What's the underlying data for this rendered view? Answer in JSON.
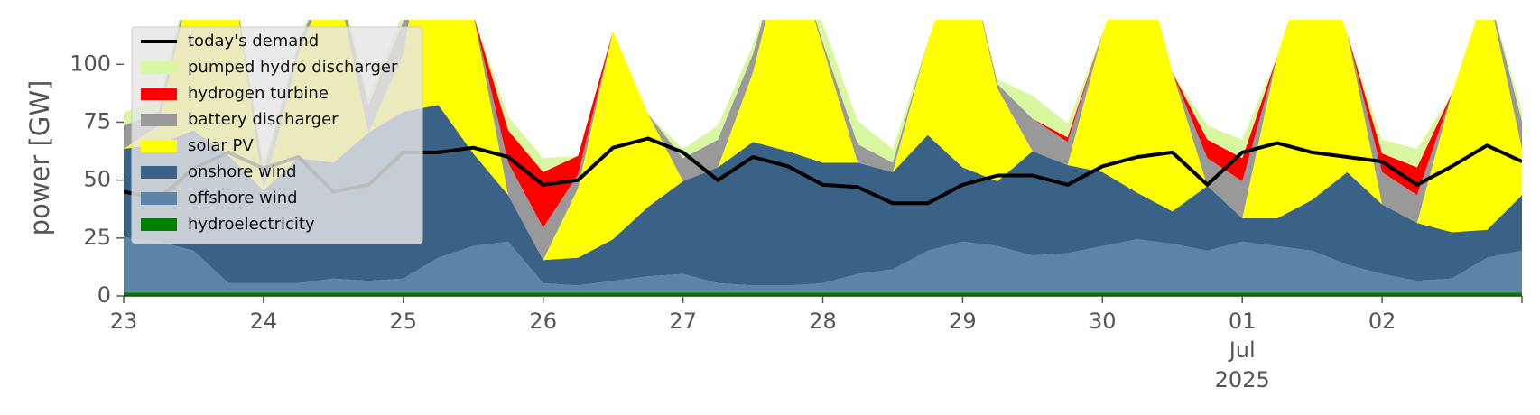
{
  "chart_data": {
    "type": "area",
    "ylabel": "power [GW]",
    "ylim": [
      0,
      120
    ],
    "xlim_days": [
      "2025-06-23",
      "2025-07-03"
    ],
    "x_ticks": [
      {
        "label": "23"
      },
      {
        "label": "24"
      },
      {
        "label": "25"
      },
      {
        "label": "26"
      },
      {
        "label": "27"
      },
      {
        "label": "28"
      },
      {
        "label": "29"
      },
      {
        "label": "30"
      },
      {
        "label": "01",
        "sub1": "Jul",
        "sub2": "2025"
      },
      {
        "label": "02"
      }
    ],
    "y_ticks": [
      0,
      25,
      50,
      75,
      100
    ],
    "grid": false,
    "legend_position": "upper-left",
    "series": [
      {
        "name": "hydroelectricity",
        "color": "#008000",
        "values": [
          1.5,
          1.5,
          1.5,
          1.5,
          1.5,
          1.5,
          1.5,
          1.5,
          1.5,
          1.5,
          1.5,
          1.5,
          1.5,
          1.5,
          1.5,
          1.5,
          1.5,
          1.5,
          1.5,
          1.5,
          1.5,
          1.5,
          1.5,
          1.5,
          1.5,
          1.5,
          1.5,
          1.5,
          1.5,
          1.5,
          1.5,
          1.5,
          1.5,
          1.5,
          1.5,
          1.5,
          1.5,
          1.5,
          1.5,
          1.5,
          1.5
        ]
      },
      {
        "name": "offshore wind",
        "color": "#5b84a7",
        "values": [
          24,
          22,
          18,
          4,
          4,
          4,
          6,
          5,
          6,
          15,
          20,
          22,
          4,
          3,
          5,
          7,
          8,
          4,
          3,
          3,
          4,
          8,
          10,
          18,
          22,
          20,
          16,
          17,
          20,
          23,
          21,
          18,
          22,
          20,
          18,
          12,
          8,
          5,
          6,
          15,
          18
        ]
      },
      {
        "name": "onshore wind",
        "color": "#3a6286",
        "values": [
          38,
          42,
          52,
          55,
          40,
          54,
          50,
          64,
          72,
          66,
          40,
          20,
          10,
          12,
          18,
          30,
          40,
          50,
          62,
          58,
          52,
          48,
          42,
          50,
          32,
          28,
          45,
          38,
          32,
          20,
          14,
          28,
          10,
          12,
          22,
          40,
          30,
          25,
          20,
          12,
          24
        ]
      },
      {
        "name": "solar PV",
        "color": "#ffff00",
        "values": [
          0,
          8,
          70,
          90,
          0,
          45,
          85,
          0,
          25,
          110,
          60,
          0,
          0,
          30,
          90,
          40,
          0,
          0,
          30,
          95,
          50,
          0,
          0,
          40,
          100,
          40,
          0,
          0,
          60,
          110,
          60,
          0,
          0,
          70,
          110,
          60,
          0,
          0,
          60,
          105,
          20
        ]
      },
      {
        "name": "battery discharger",
        "color": "#999999",
        "values": [
          10,
          6,
          2,
          0,
          8,
          4,
          2,
          12,
          14,
          4,
          0,
          14,
          14,
          6,
          0,
          0,
          10,
          12,
          8,
          0,
          2,
          8,
          4,
          0,
          0,
          2,
          14,
          10,
          0,
          0,
          0,
          12,
          16,
          0,
          0,
          0,
          14,
          12,
          0,
          0,
          12
        ]
      },
      {
        "name": "hydrogen turbine",
        "color": "#ff0000",
        "values": [
          0,
          0,
          0,
          0,
          0,
          0,
          0,
          0,
          0,
          0,
          0,
          14,
          24,
          8,
          0,
          0,
          0,
          0,
          0,
          0,
          0,
          0,
          0,
          0,
          0,
          0,
          0,
          2,
          0,
          0,
          0,
          8,
          10,
          0,
          0,
          0,
          8,
          12,
          0,
          0,
          0
        ]
      },
      {
        "name": "pumped hydro discharger",
        "color": "#d9f7a0",
        "values": [
          6,
          4,
          2,
          0,
          4,
          2,
          2,
          4,
          4,
          0,
          0,
          6,
          6,
          0,
          0,
          0,
          4,
          6,
          4,
          0,
          8,
          10,
          6,
          0,
          0,
          2,
          10,
          6,
          0,
          0,
          0,
          6,
          8,
          0,
          0,
          0,
          6,
          8,
          0,
          0,
          4
        ]
      }
    ],
    "demand": {
      "name": "today's demand",
      "color": "#000000",
      "values": [
        45,
        42,
        55,
        62,
        55,
        60,
        45,
        48,
        62,
        62,
        64,
        60,
        48,
        50,
        64,
        68,
        62,
        50,
        60,
        56,
        48,
        47,
        40,
        40,
        48,
        52,
        52,
        48,
        56,
        60,
        62,
        48,
        62,
        66,
        62,
        60,
        58,
        48,
        56,
        65,
        58
      ]
    }
  }
}
